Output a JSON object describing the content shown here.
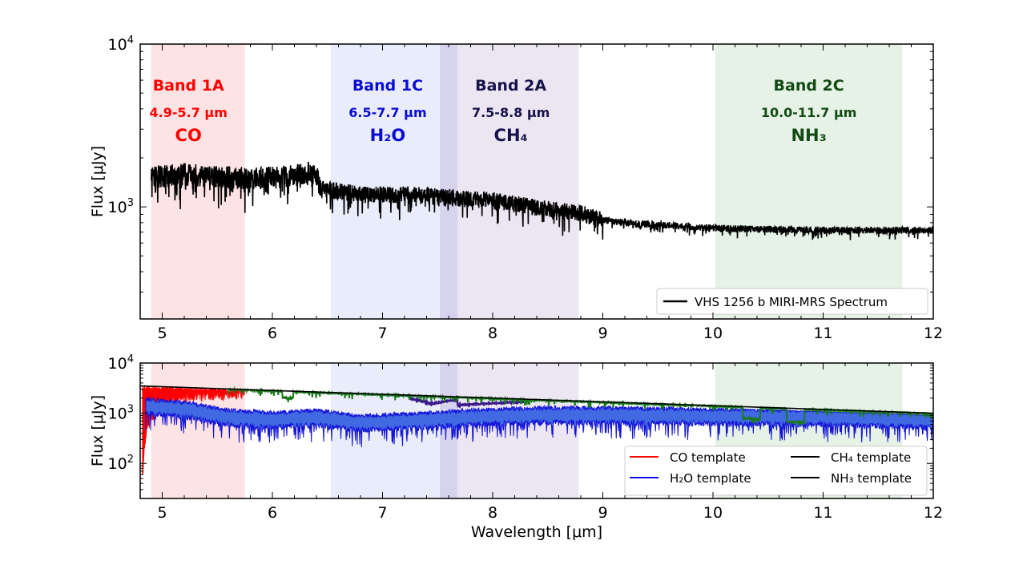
{
  "chart_data": [
    {
      "type": "line",
      "panel": "top",
      "ylabel": "Flux [μJy]",
      "xlabel": "",
      "xlim": [
        4.8,
        12
      ],
      "ylim": [
        205,
        10000
      ],
      "yscale": "log",
      "xticks": [
        "5",
        "6",
        "7",
        "8",
        "9",
        "10",
        "11",
        "12"
      ],
      "yticks": [
        {
          "base": "10",
          "exp": "3"
        },
        {
          "base": "10",
          "exp": "4"
        }
      ],
      "legend_position": "bottom-right",
      "series": [
        {
          "name": "VHS 1256 b MIRI-MRS Spectrum",
          "color": "#000000",
          "x": [
            4.9,
            5.2,
            5.5,
            5.8,
            6.1,
            6.38,
            6.45,
            6.8,
            7.2,
            7.6,
            8.0,
            8.4,
            8.8,
            9.0,
            9.3,
            9.6,
            10.0,
            10.5,
            11.0,
            11.5,
            12.0
          ],
          "y": [
            1550,
            1600,
            1550,
            1500,
            1550,
            1650,
            1300,
            1200,
            1200,
            1150,
            1100,
            1000,
            920,
            830,
            790,
            770,
            740,
            730,
            720,
            720,
            720
          ]
        }
      ],
      "bands": [
        {
          "name": "Band 1A",
          "range_label": "4.9-5.7 μm",
          "molecule": "CO",
          "x": [
            4.9,
            5.75
          ],
          "color": "#ff0000",
          "fill": "#fde3e3"
        },
        {
          "name": "Band 1C",
          "range_label": "6.5-7.7 μm",
          "molecule": "H₂O",
          "x": [
            6.53,
            7.68
          ],
          "color": "#0b0bd6",
          "fill": "#e9edfb"
        },
        {
          "name": "Band 2A",
          "range_label": "7.5-8.8 μm",
          "molecule": "CH₄",
          "x": [
            7.52,
            8.78
          ],
          "color": "#15134a",
          "fill": "#ece5f2"
        },
        {
          "name": "Band 2C",
          "range_label": "10.0-11.7 μm",
          "molecule": "NH₃",
          "x": [
            10.02,
            11.72
          ],
          "color": "#134a13",
          "fill": "#e5f2e5"
        }
      ]
    },
    {
      "type": "line",
      "panel": "bottom",
      "ylabel": "Flux [μJy]",
      "xlabel": "Wavelength [μm]",
      "xlim": [
        4.8,
        12
      ],
      "ylim": [
        20,
        10000
      ],
      "yscale": "log",
      "xticks": [
        "5",
        "6",
        "7",
        "8",
        "9",
        "10",
        "11",
        "12"
      ],
      "yticks": [
        {
          "base": "10",
          "exp": "2"
        },
        {
          "base": "10",
          "exp": "3"
        },
        {
          "base": "10",
          "exp": "4"
        }
      ],
      "legend_position": "bottom-right",
      "continuum": {
        "x": [
          4.8,
          12
        ],
        "y": [
          3500,
          1000
        ]
      },
      "series": [
        {
          "name": "CO template",
          "color": "#ff0000"
        },
        {
          "name": "H₂O template",
          "color": "#1010e0",
          "fill": "#4169e1",
          "x": [
            4.85,
            5.2,
            5.6,
            6.0,
            6.4,
            6.8,
            7.2,
            7.6,
            8.0,
            8.5,
            9.0,
            10.0,
            11.0,
            12.0
          ],
          "y": [
            1500,
            1300,
            900,
            800,
            900,
            700,
            750,
            850,
            950,
            1000,
            1000,
            950,
            900,
            800
          ]
        },
        {
          "name": "CH₄ template",
          "color": "#3b1a8a"
        },
        {
          "name": "NH₃ template",
          "color": "#1a7a1a"
        }
      ]
    }
  ]
}
